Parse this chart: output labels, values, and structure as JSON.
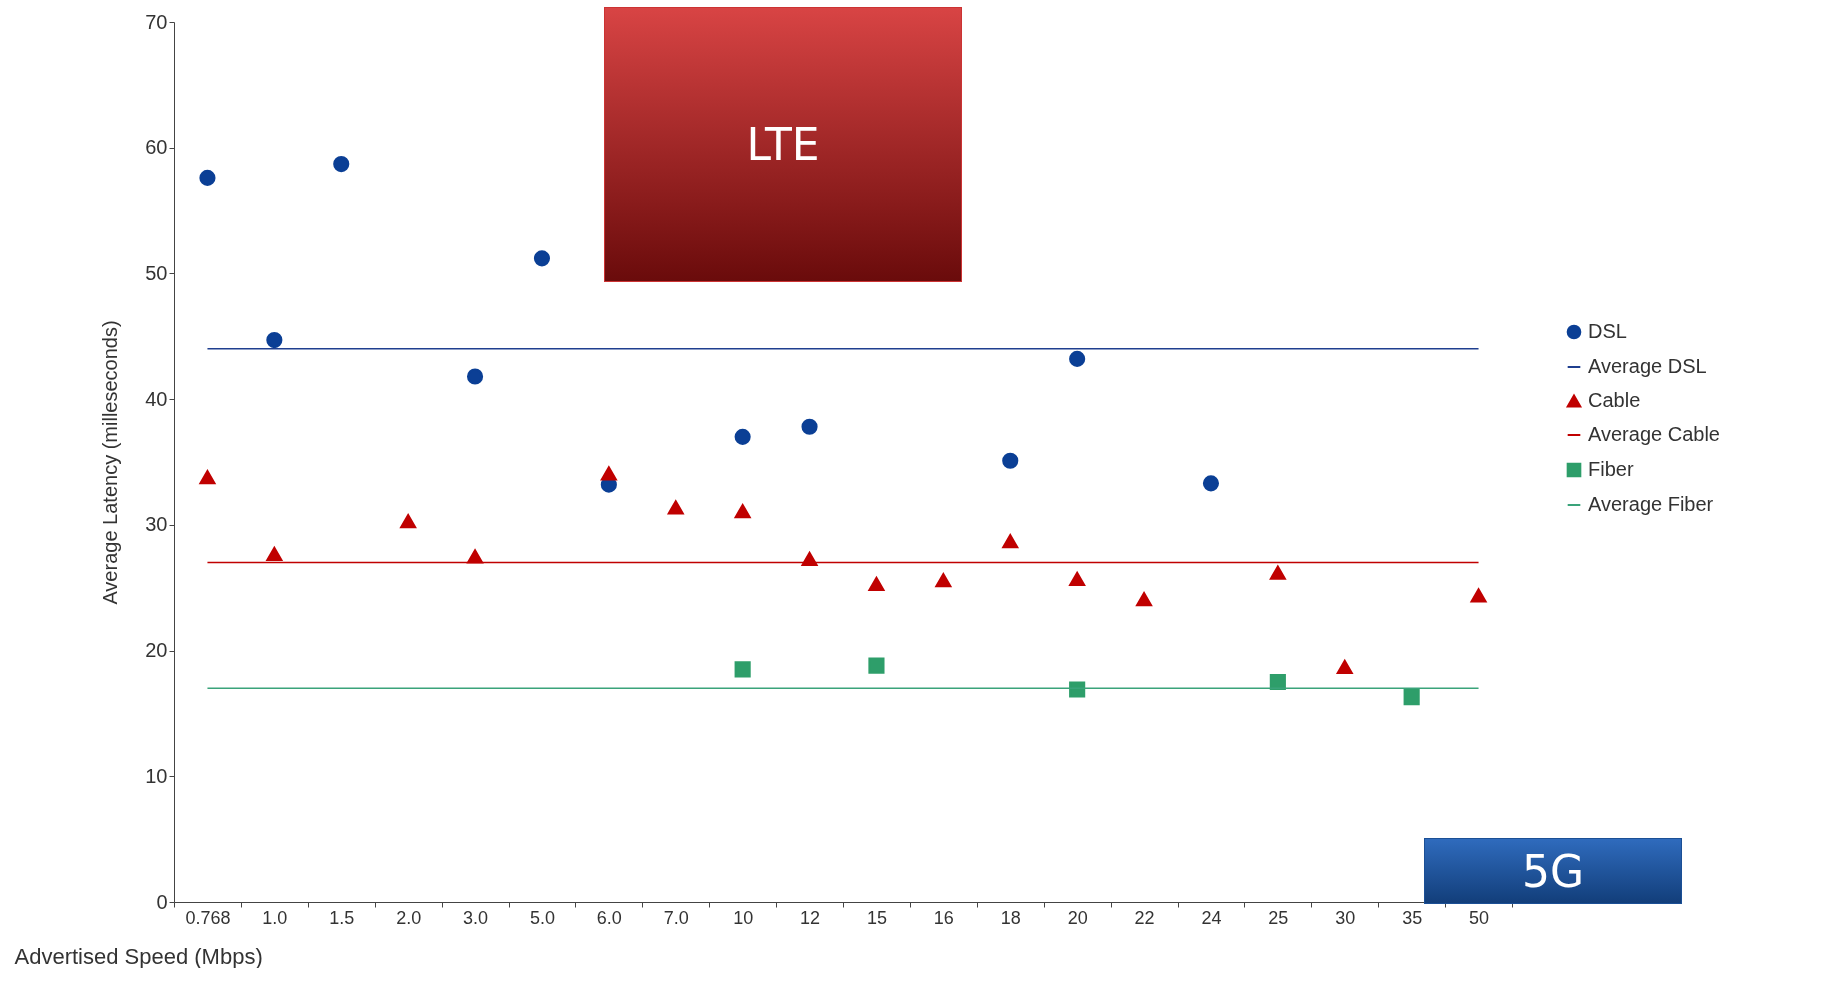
{
  "chart_data": {
    "type": "scatter",
    "xlabel": "Advertised Speed (Mbps)",
    "ylabel": "Average Latency (milleseconds)",
    "categories": [
      "0.768",
      "1.0",
      "1.5",
      "2.0",
      "3.0",
      "5.0",
      "6.0",
      "7.0",
      "10",
      "12",
      "15",
      "16",
      "18",
      "20",
      "22",
      "24",
      "25",
      "30",
      "35",
      "50"
    ],
    "ylim": [
      0,
      70
    ],
    "yticks": [
      0,
      10,
      20,
      30,
      40,
      50,
      60,
      70
    ],
    "grid": false,
    "legend": "right",
    "series": [
      {
        "name": "DSL",
        "type": "scatter",
        "marker": "circle",
        "color": "#0b3f95",
        "values": [
          57.6,
          44.7,
          58.7,
          null,
          41.8,
          51.2,
          33.2,
          null,
          37.0,
          37.8,
          null,
          null,
          35.1,
          43.2,
          null,
          33.3,
          null,
          null,
          null,
          null
        ]
      },
      {
        "name": "Average DSL",
        "type": "line",
        "color": "#1f3f8f",
        "values": [
          44,
          44,
          44,
          44,
          44,
          44,
          44,
          44,
          44,
          44,
          44,
          44,
          44,
          44,
          44,
          44,
          44,
          44,
          44,
          44
        ]
      },
      {
        "name": "Cable",
        "type": "scatter",
        "marker": "triangle",
        "color": "#c00000",
        "values": [
          33.8,
          27.7,
          null,
          30.3,
          27.5,
          null,
          34.1,
          31.4,
          31.1,
          27.3,
          25.3,
          25.6,
          28.7,
          25.7,
          24.1,
          null,
          26.2,
          18.7,
          null,
          24.4
        ]
      },
      {
        "name": "Average Cable",
        "type": "line",
        "color": "#c00000",
        "values": [
          27,
          27,
          27,
          27,
          27,
          27,
          27,
          27,
          27,
          27,
          27,
          27,
          27,
          27,
          27,
          27,
          27,
          27,
          27,
          27
        ]
      },
      {
        "name": "Fiber",
        "type": "scatter",
        "marker": "square",
        "color": "#2e9e6a",
        "values": [
          null,
          null,
          null,
          null,
          null,
          null,
          null,
          null,
          18.5,
          null,
          18.8,
          null,
          null,
          16.9,
          null,
          null,
          17.5,
          null,
          16.3,
          null
        ]
      },
      {
        "name": "Average Fiber",
        "type": "line",
        "color": "#3aa37a",
        "values": [
          17,
          17,
          17,
          17,
          17,
          17,
          17,
          17,
          17,
          17,
          17,
          17,
          17,
          17,
          17,
          17,
          17,
          17,
          17,
          17
        ]
      }
    ],
    "annotations": [
      "LTE",
      "5G"
    ]
  }
}
